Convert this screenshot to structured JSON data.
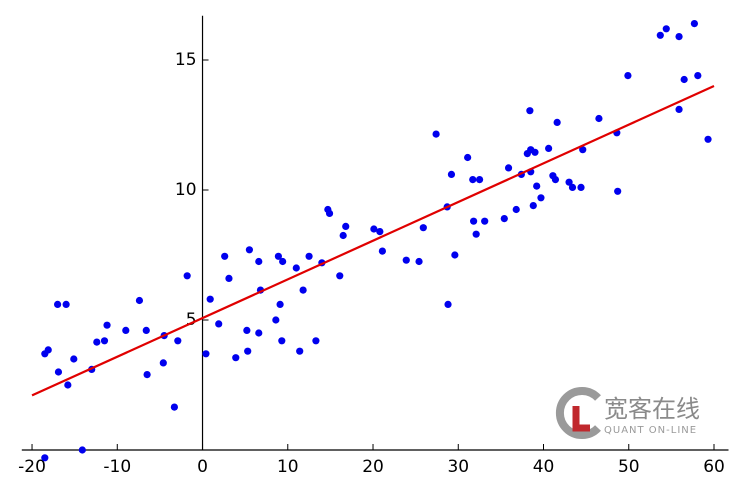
{
  "chart_data": {
    "type": "scatter",
    "xlim": [
      -21.2,
      61.7
    ],
    "ylim": [
      -0.6,
      16.7
    ],
    "xticks": [
      -20,
      -10,
      0,
      10,
      20,
      30,
      40,
      50,
      60
    ],
    "yticks": [
      5,
      10,
      15
    ],
    "series": [
      {
        "color": "#0000ee",
        "x": [
          -18.5,
          -18.5,
          -18.1,
          -17.0,
          -16.0,
          -16.9,
          -15.8,
          -15.1,
          -14.1,
          -13.0,
          -12.4,
          -11.5,
          -11.2,
          -9.0,
          -7.4,
          -6.6,
          -6.5,
          -4.5,
          -4.6,
          -3.3,
          -2.9,
          -1.8,
          0.4,
          0.9,
          1.9,
          2.6,
          3.1,
          3.9,
          5.5,
          5.2,
          5.3,
          6.6,
          6.6,
          6.8,
          8.6,
          8.9,
          9.1,
          9.4,
          9.3,
          11.0,
          11.4,
          11.8,
          12.5,
          13.3,
          14.0,
          14.7,
          14.9,
          16.1,
          16.5,
          16.8,
          20.1,
          20.8,
          21.1,
          23.9,
          25.4,
          25.9,
          27.4,
          28.7,
          28.8,
          29.2,
          29.6,
          31.1,
          31.7,
          31.8,
          32.1,
          32.5,
          33.1,
          35.4,
          35.9,
          36.8,
          37.4,
          38.1,
          38.4,
          38.5,
          38.5,
          38.8,
          39.0,
          39.2,
          39.7,
          40.6,
          41.1,
          41.4,
          41.6,
          43.0,
          43.4,
          44.4,
          44.6,
          46.5,
          48.6,
          48.7,
          49.9,
          53.7,
          54.4,
          55.9,
          55.9,
          56.5,
          57.7,
          58.1,
          59.3
        ],
        "values": [
          -0.3,
          3.7,
          3.85,
          5.6,
          5.6,
          3.0,
          2.5,
          3.5,
          0.0,
          3.1,
          4.15,
          4.2,
          4.8,
          4.6,
          5.75,
          4.6,
          2.9,
          4.4,
          3.35,
          1.65,
          4.2,
          6.7,
          3.7,
          5.8,
          4.85,
          7.45,
          6.6,
          3.55,
          7.7,
          4.6,
          3.8,
          7.25,
          4.5,
          6.15,
          5.0,
          7.45,
          5.6,
          7.25,
          4.2,
          7.0,
          3.8,
          6.15,
          7.45,
          4.2,
          7.2,
          9.25,
          9.1,
          6.7,
          8.25,
          8.6,
          8.5,
          8.4,
          7.65,
          7.3,
          7.25,
          8.55,
          12.15,
          9.35,
          5.6,
          10.6,
          7.5,
          11.25,
          10.4,
          8.8,
          8.3,
          10.4,
          8.8,
          8.9,
          10.85,
          9.25,
          10.6,
          11.4,
          13.05,
          11.55,
          10.7,
          9.4,
          11.45,
          10.15,
          9.7,
          11.6,
          10.55,
          10.4,
          12.6,
          10.3,
          10.1,
          10.1,
          11.55,
          12.75,
          12.2,
          9.95,
          14.4,
          15.95,
          16.2,
          15.9,
          13.1,
          14.25,
          16.4,
          14.4,
          11.95
        ]
      },
      {
        "type": "line",
        "color": "#e00000",
        "x": [
          -20,
          60
        ],
        "values": [
          2.1,
          14.0
        ]
      }
    ],
    "watermark": {
      "title": "宽客在线",
      "subtitle": "QUANT ON-LINE"
    }
  }
}
